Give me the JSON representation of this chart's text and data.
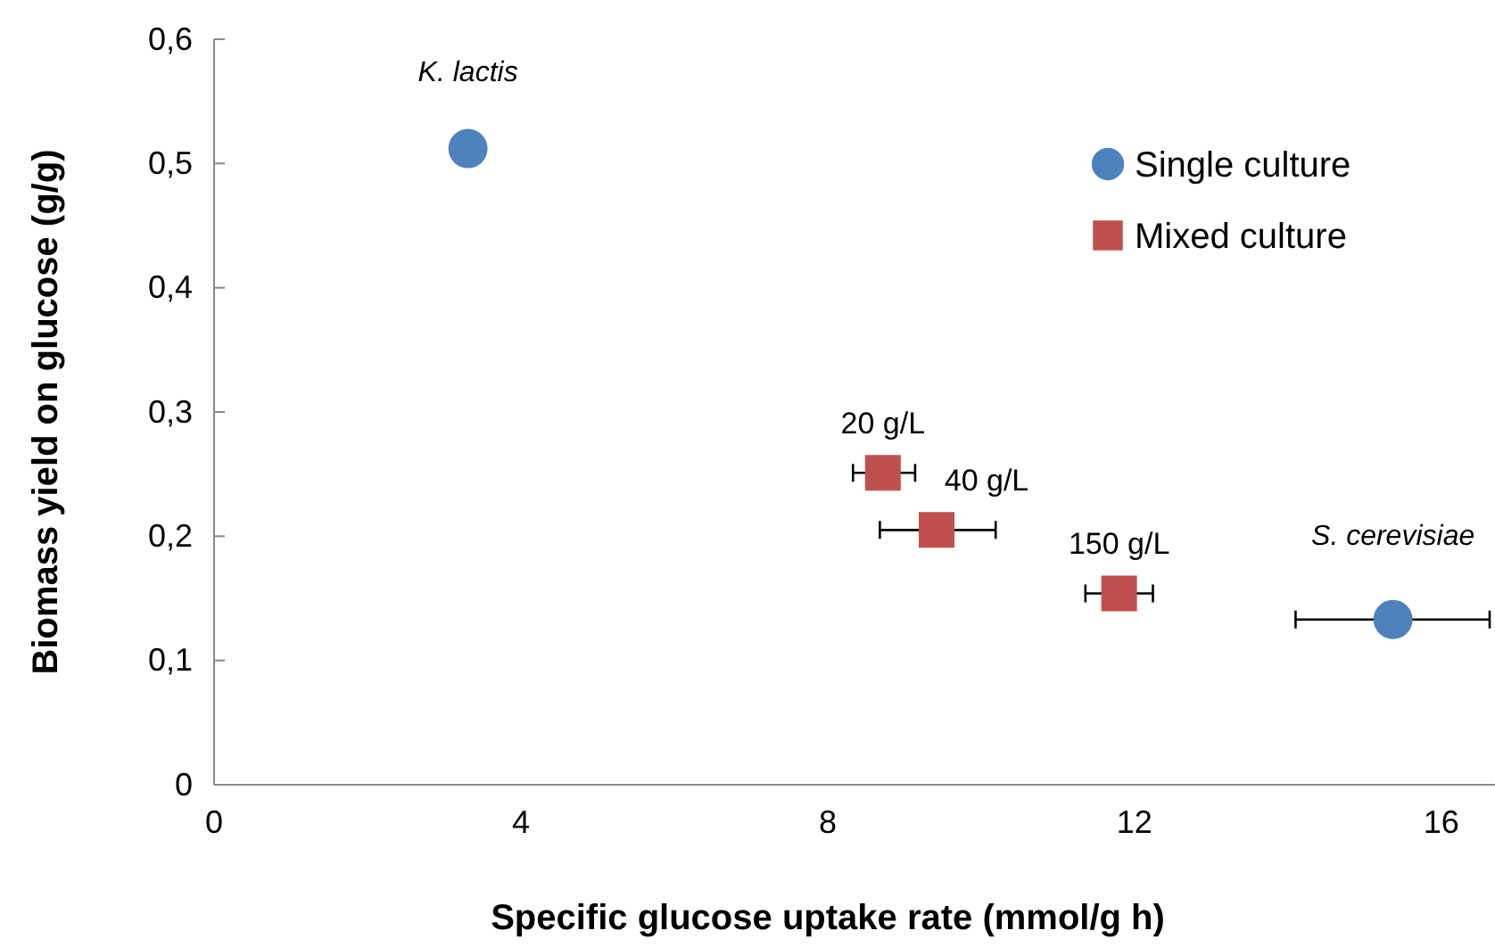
{
  "chart_data": {
    "type": "scatter",
    "xlabel": "Specific glucose uptake rate (mmol/g h)",
    "ylabel": "Biomass yield on glucose (g/g)",
    "xlim": [
      0,
      16.7
    ],
    "xticks": [
      0,
      4,
      8,
      12,
      16
    ],
    "ylim": [
      0,
      0.6
    ],
    "yticks": [
      {
        "value": 0,
        "label": "0"
      },
      {
        "value": 0.1,
        "label": "0,1"
      },
      {
        "value": 0.2,
        "label": "0,2"
      },
      {
        "value": 0.3,
        "label": "0,3"
      },
      {
        "value": 0.4,
        "label": "0,4"
      },
      {
        "value": 0.5,
        "label": "0,5"
      },
      {
        "value": 0.6,
        "label": "0,6"
      }
    ],
    "grid": false,
    "legend": "top right",
    "series": [
      {
        "name": "Single culture",
        "color": "#4f81bd",
        "marker": "circle",
        "x": [
          3.31,
          15.37
        ],
        "values": [
          0.512,
          0.133
        ],
        "xerrors": [
          null,
          [
            14.1,
            16.63
          ]
        ]
      },
      {
        "name": "Mixed culture",
        "color": "#c0504d",
        "marker": "square",
        "x": [
          8.72,
          9.42,
          11.8
        ],
        "values": [
          0.251,
          0.205,
          0.154
        ],
        "xerrors": [
          [
            8.33,
            9.14
          ],
          [
            8.68,
            10.19
          ],
          [
            11.36,
            12.24
          ]
        ]
      }
    ],
    "annotations": [
      {
        "text": "K. lactis",
        "x": 3.31,
        "y": 0.512
      },
      {
        "text": "S. cerevisiae",
        "x": 15.37,
        "y": 0.133
      },
      {
        "text": "20 g/L",
        "x": 8.72,
        "y": 0.251
      },
      {
        "text": "40 g/L",
        "x": 9.42,
        "y": 0.205
      },
      {
        "text": "150 g/L",
        "x": 11.8,
        "y": 0.154
      }
    ]
  }
}
